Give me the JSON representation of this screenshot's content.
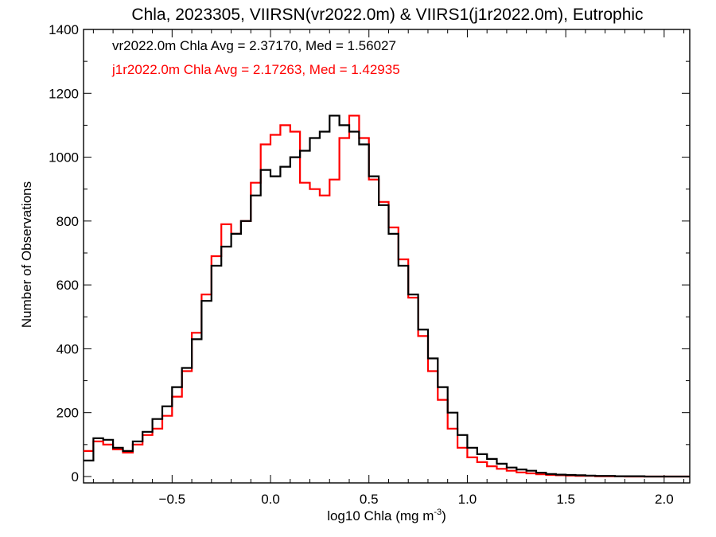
{
  "chart_data": {
    "type": "line",
    "title": "Chla, 2023305, VIIRSN(vr2022.0m) & VIIRS1(j1r2022.0m), Eutrophic",
    "xlabel": "log10 Chla (mg m",
    "xlabel_sup": "-3",
    "xlabel_close": ")",
    "ylabel": "Number of Observations",
    "xlim": [
      -0.95,
      2.13
    ],
    "ylim": [
      -20,
      1400
    ],
    "x_ticks": [
      -0.5,
      0.0,
      0.5,
      1.0,
      1.5,
      2.0
    ],
    "x_tick_labels": [
      "−0.5",
      "0.0",
      "0.5",
      "1.0",
      "1.5",
      "2.0"
    ],
    "y_ticks": [
      0,
      200,
      400,
      600,
      800,
      1000,
      1200,
      1400
    ],
    "y_tick_labels": [
      "0",
      "200",
      "400",
      "600",
      "800",
      "1000",
      "1200",
      "1400"
    ],
    "grid": false,
    "legend": [
      {
        "text": "vr2022.0m Chla Avg = 2.37170, Med = 1.56027",
        "color": "#000000"
      },
      {
        "text": "j1r2022.0m Chla Avg = 2.17263, Med = 1.42935",
        "color": "#ff0000"
      }
    ],
    "series": [
      {
        "color": "#000000",
        "x": [
          -0.95,
          -0.9,
          -0.85,
          -0.8,
          -0.75,
          -0.7,
          -0.65,
          -0.6,
          -0.55,
          -0.5,
          -0.45,
          -0.4,
          -0.35,
          -0.3,
          -0.25,
          -0.2,
          -0.15,
          -0.1,
          -0.05,
          0.0,
          0.05,
          0.1,
          0.15,
          0.2,
          0.25,
          0.3,
          0.35,
          0.4,
          0.45,
          0.5,
          0.55,
          0.6,
          0.65,
          0.7,
          0.75,
          0.8,
          0.85,
          0.9,
          0.95,
          1.0,
          1.05,
          1.1,
          1.15,
          1.2,
          1.25,
          1.3,
          1.35,
          1.4,
          1.45,
          1.5,
          1.55,
          1.6,
          1.65,
          1.7,
          1.75,
          1.8,
          1.85,
          1.9,
          1.95,
          2.0,
          2.05,
          2.1
        ],
        "values": [
          50,
          120,
          115,
          90,
          80,
          110,
          140,
          180,
          220,
          280,
          340,
          430,
          550,
          660,
          720,
          760,
          800,
          880,
          960,
          940,
          970,
          1000,
          1020,
          1060,
          1080,
          1130,
          1100,
          1080,
          1040,
          940,
          850,
          760,
          660,
          570,
          460,
          370,
          280,
          200,
          130,
          90,
          70,
          55,
          40,
          28,
          22,
          18,
          12,
          8,
          6,
          5,
          4,
          3,
          2,
          2,
          1,
          1,
          1,
          0,
          0,
          0,
          0,
          0
        ]
      },
      {
        "color": "#ff0000",
        "x": [
          -0.95,
          -0.9,
          -0.85,
          -0.8,
          -0.75,
          -0.7,
          -0.65,
          -0.6,
          -0.55,
          -0.5,
          -0.45,
          -0.4,
          -0.35,
          -0.3,
          -0.25,
          -0.2,
          -0.15,
          -0.1,
          -0.05,
          0.0,
          0.05,
          0.1,
          0.15,
          0.2,
          0.25,
          0.3,
          0.35,
          0.4,
          0.45,
          0.5,
          0.55,
          0.6,
          0.65,
          0.7,
          0.75,
          0.8,
          0.85,
          0.9,
          0.95,
          1.0,
          1.05,
          1.1,
          1.15,
          1.2,
          1.25,
          1.3,
          1.35,
          1.4,
          1.45,
          1.5,
          1.55,
          1.6,
          1.65,
          1.7,
          1.75,
          1.8,
          1.85,
          1.9,
          1.95,
          2.0,
          2.05,
          2.1
        ],
        "values": [
          80,
          110,
          100,
          85,
          75,
          100,
          130,
          150,
          190,
          250,
          330,
          450,
          570,
          690,
          790,
          760,
          800,
          920,
          1040,
          1070,
          1100,
          1080,
          920,
          900,
          880,
          930,
          1060,
          1130,
          1060,
          930,
          860,
          780,
          680,
          560,
          440,
          330,
          240,
          150,
          90,
          60,
          45,
          32,
          24,
          18,
          13,
          10,
          7,
          5,
          4,
          3,
          2,
          2,
          1,
          1,
          1,
          0,
          0,
          0,
          0,
          0,
          0,
          0
        ]
      }
    ]
  }
}
